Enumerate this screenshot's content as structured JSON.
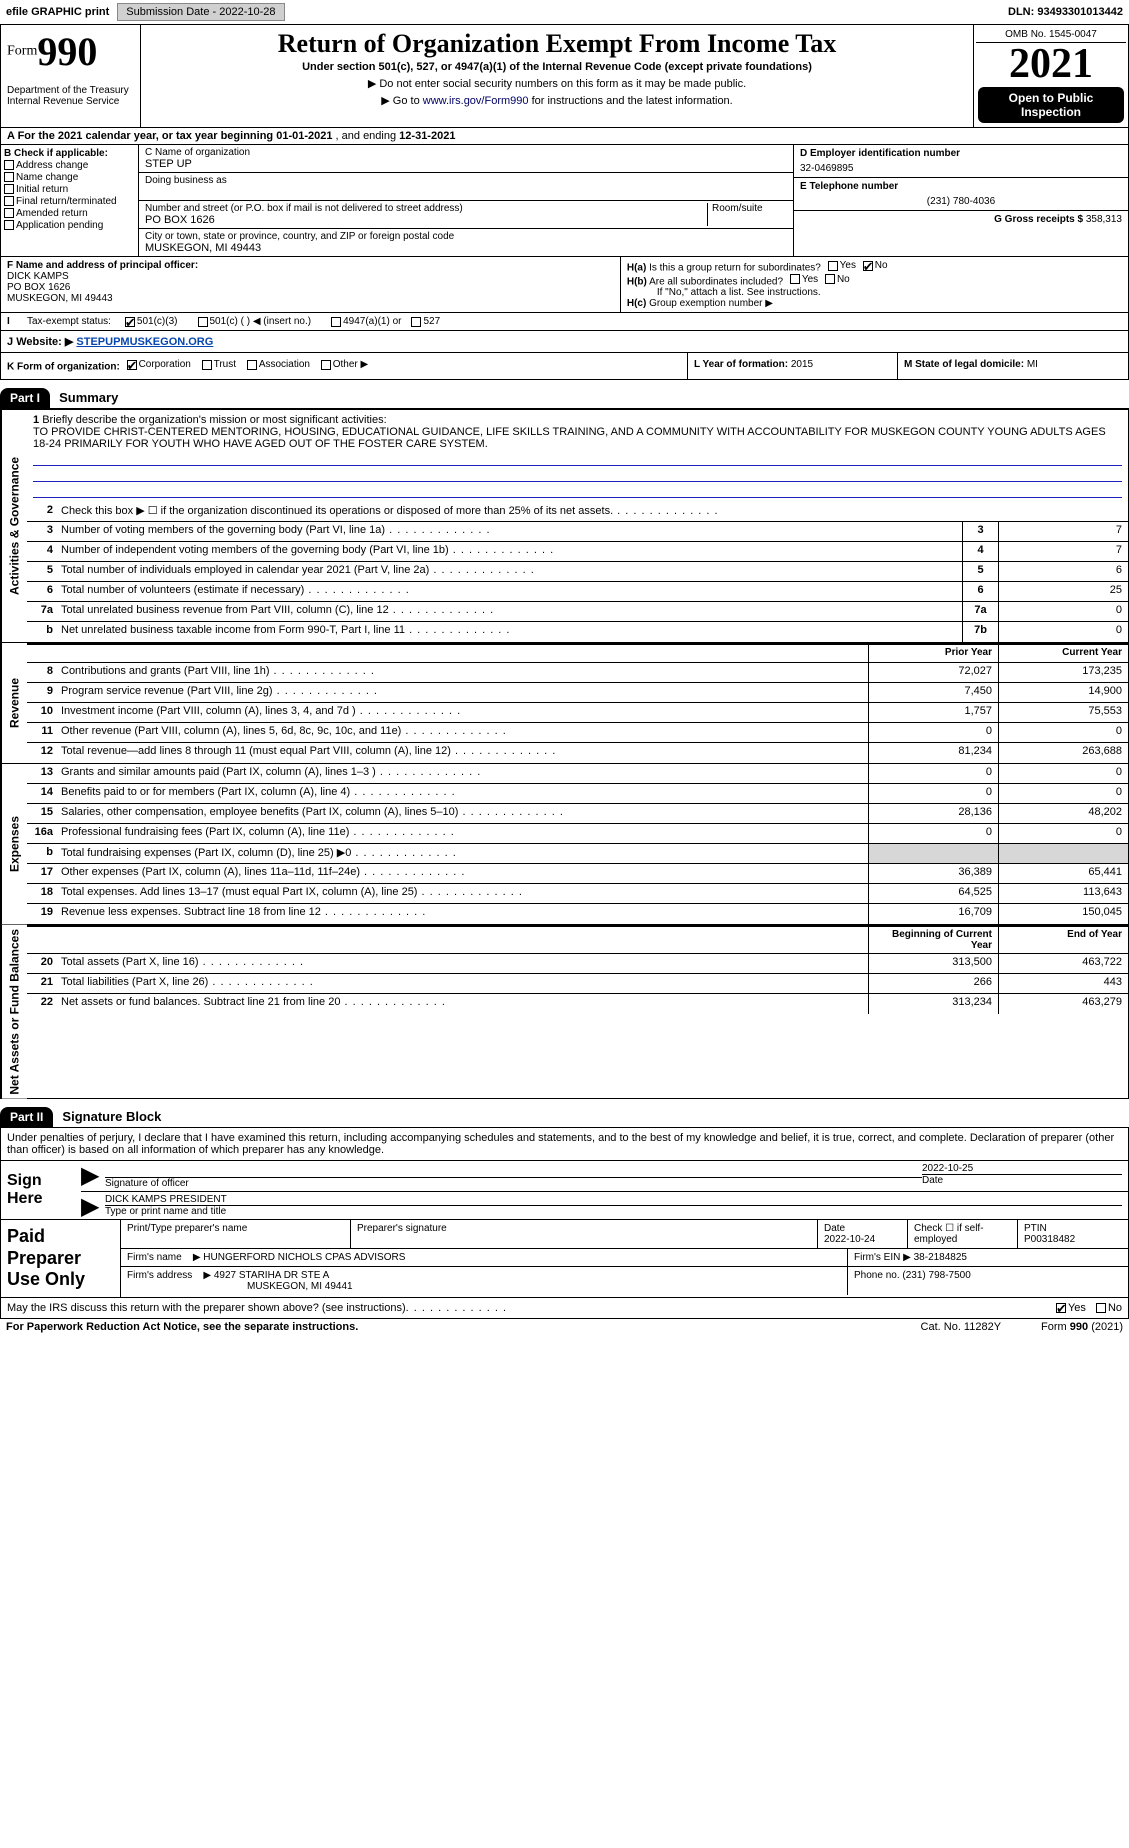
{
  "topbar": {
    "efile_label": "efile GRAPHIC print",
    "submission_btn": "Submission Date - 2022-10-28",
    "dln": "DLN: 93493301013442"
  },
  "header": {
    "form_label": "Form",
    "form_number": "990",
    "dept": "Department of the Treasury\nInternal Revenue Service",
    "title": "Return of Organization Exempt From Income Tax",
    "subtitle": "Under section 501(c), 527, or 4947(a)(1) of the Internal Revenue Code (except private foundations)",
    "ssn_note": "▶ Do not enter social security numbers on this form as it may be made public.",
    "goto": "▶ Go to www.irs.gov/Form990 for instructions and the latest information.",
    "goto_link": "www.irs.gov/Form990",
    "omb": "OMB No. 1545-0047",
    "year": "2021",
    "open_public": "Open to Public Inspection"
  },
  "period": {
    "text_a": "A For the 2021 calendar year, or tax year beginning ",
    "begin": "01-01-2021",
    "mid": " , and ending ",
    "end": "12-31-2021"
  },
  "boxB": {
    "header": "B Check if applicable:",
    "items": [
      "Address change",
      "Name change",
      "Initial return",
      "Final return/terminated",
      "Amended return",
      "Application pending"
    ]
  },
  "boxC": {
    "name_label": "C Name of organization",
    "name": "STEP UP",
    "dba_label": "Doing business as",
    "addr_label": "Number and street (or P.O. box if mail is not delivered to street address)",
    "room_label": "Room/suite",
    "addr": "PO BOX 1626",
    "city_label": "City or town, state or province, country, and ZIP or foreign postal code",
    "city": "MUSKEGON, MI  49443"
  },
  "boxDE": {
    "d_label": "D Employer identification number",
    "d_val": "32-0469895",
    "e_label": "E Telephone number",
    "e_val": "(231) 780-4036",
    "g_label": "G Gross receipts $",
    "g_val": "358,313"
  },
  "boxF": {
    "label": "F Name and address of principal officer:",
    "name": "DICK KAMPS",
    "addr1": "PO BOX 1626",
    "addr2": "MUSKEGON, MI  49443"
  },
  "boxH": {
    "ha_label": "H(a)",
    "ha_text": "Is this a group return for subordinates?",
    "hb_label": "H(b)",
    "hb_text": "Are all subordinates included?",
    "hb_note": "If \"No,\" attach a list. See instructions.",
    "hc_label": "H(c)",
    "hc_text": "Group exemption number ▶",
    "yes": "Yes",
    "no": "No"
  },
  "boxI": {
    "label": "I",
    "text": "Tax-exempt status:",
    "opts": [
      "501(c)(3)",
      "501(c) (  ) ◀ (insert no.)",
      "4947(a)(1) or",
      "527"
    ]
  },
  "boxJ": {
    "label": "J",
    "text": "Website: ▶",
    "url": "STEPUPMUSKEGON.ORG"
  },
  "boxK": {
    "label": "K Form of organization:",
    "opts": [
      "Corporation",
      "Trust",
      "Association",
      "Other ▶"
    ],
    "l_label": "L Year of formation:",
    "l_val": "2015",
    "m_label": "M State of legal domicile:",
    "m_val": "MI"
  },
  "part1": {
    "header": "Part I",
    "title": "Summary",
    "line1_label": "1",
    "line1_text": "Briefly describe the organization's mission or most significant activities:",
    "mission": "TO PROVIDE CHRIST-CENTERED MENTORING, HOUSING, EDUCATIONAL GUIDANCE, LIFE SKILLS TRAINING, AND A COMMUNITY WITH ACCOUNTABILITY FOR MUSKEGON COUNTY YOUNG ADULTS AGES 18-24 PRIMARILY FOR YOUTH WHO HAVE AGED OUT OF THE FOSTER CARE SYSTEM."
  },
  "gov_rows": [
    {
      "n": "2",
      "d": "Check this box ▶ ☐ if the organization discontinued its operations or disposed of more than 25% of its net assets.",
      "box": "",
      "v": ""
    },
    {
      "n": "3",
      "d": "Number of voting members of the governing body (Part VI, line 1a)",
      "box": "3",
      "v": "7"
    },
    {
      "n": "4",
      "d": "Number of independent voting members of the governing body (Part VI, line 1b)",
      "box": "4",
      "v": "7"
    },
    {
      "n": "5",
      "d": "Total number of individuals employed in calendar year 2021 (Part V, line 2a)",
      "box": "5",
      "v": "6"
    },
    {
      "n": "6",
      "d": "Total number of volunteers (estimate if necessary)",
      "box": "6",
      "v": "25"
    },
    {
      "n": "7a",
      "d": "Total unrelated business revenue from Part VIII, column (C), line 12",
      "box": "7a",
      "v": "0"
    },
    {
      "n": "b",
      "d": "Net unrelated business taxable income from Form 990-T, Part I, line 11",
      "box": "7b",
      "v": "0"
    }
  ],
  "side_labels": {
    "gov": "Activities & Governance",
    "rev": "Revenue",
    "exp": "Expenses",
    "net": "Net Assets or Fund Balances"
  },
  "col_headers": {
    "prior": "Prior Year",
    "current": "Current Year",
    "beg": "Beginning of Current Year",
    "end": "End of Year"
  },
  "rev_rows": [
    {
      "n": "8",
      "d": "Contributions and grants (Part VIII, line 1h)",
      "p": "72,027",
      "c": "173,235"
    },
    {
      "n": "9",
      "d": "Program service revenue (Part VIII, line 2g)",
      "p": "7,450",
      "c": "14,900"
    },
    {
      "n": "10",
      "d": "Investment income (Part VIII, column (A), lines 3, 4, and 7d )",
      "p": "1,757",
      "c": "75,553"
    },
    {
      "n": "11",
      "d": "Other revenue (Part VIII, column (A), lines 5, 6d, 8c, 9c, 10c, and 11e)",
      "p": "0",
      "c": "0"
    },
    {
      "n": "12",
      "d": "Total revenue—add lines 8 through 11 (must equal Part VIII, column (A), line 12)",
      "p": "81,234",
      "c": "263,688"
    }
  ],
  "exp_rows": [
    {
      "n": "13",
      "d": "Grants and similar amounts paid (Part IX, column (A), lines 1–3 )",
      "p": "0",
      "c": "0"
    },
    {
      "n": "14",
      "d": "Benefits paid to or for members (Part IX, column (A), line 4)",
      "p": "0",
      "c": "0"
    },
    {
      "n": "15",
      "d": "Salaries, other compensation, employee benefits (Part IX, column (A), lines 5–10)",
      "p": "28,136",
      "c": "48,202"
    },
    {
      "n": "16a",
      "d": "Professional fundraising fees (Part IX, column (A), line 11e)",
      "p": "0",
      "c": "0"
    },
    {
      "n": "b",
      "d": "Total fundraising expenses (Part IX, column (D), line 25) ▶0",
      "p": "SHADE",
      "c": "SHADE"
    },
    {
      "n": "17",
      "d": "Other expenses (Part IX, column (A), lines 11a–11d, 11f–24e)",
      "p": "36,389",
      "c": "65,441"
    },
    {
      "n": "18",
      "d": "Total expenses. Add lines 13–17 (must equal Part IX, column (A), line 25)",
      "p": "64,525",
      "c": "113,643"
    },
    {
      "n": "19",
      "d": "Revenue less expenses. Subtract line 18 from line 12",
      "p": "16,709",
      "c": "150,045"
    }
  ],
  "net_rows": [
    {
      "n": "20",
      "d": "Total assets (Part X, line 16)",
      "p": "313,500",
      "c": "463,722"
    },
    {
      "n": "21",
      "d": "Total liabilities (Part X, line 26)",
      "p": "266",
      "c": "443"
    },
    {
      "n": "22",
      "d": "Net assets or fund balances. Subtract line 21 from line 20",
      "p": "313,234",
      "c": "463,279"
    }
  ],
  "part2": {
    "header": "Part II",
    "title": "Signature Block",
    "disclaimer": "Under penalties of perjury, I declare that I have examined this return, including accompanying schedules and statements, and to the best of my knowledge and belief, it is true, correct, and complete. Declaration of preparer (other than officer) is based on all information of which preparer has any knowledge."
  },
  "sign": {
    "label": "Sign Here",
    "sig_officer": "Signature of officer",
    "date": "Date",
    "date_val": "2022-10-25",
    "name_title": "Type or print name and title",
    "name_val": "DICK KAMPS  PRESIDENT"
  },
  "paid": {
    "label": "Paid Preparer Use Only",
    "h1": "Print/Type preparer's name",
    "h2": "Preparer's signature",
    "h3": "Date",
    "h3v": "2022-10-24",
    "h4": "Check ☐ if self-employed",
    "h5": "PTIN",
    "h5v": "P00318482",
    "firm_name_lbl": "Firm's name",
    "firm_name": "▶ HUNGERFORD NICHOLS CPAS ADVISORS",
    "firm_ein_lbl": "Firm's EIN ▶",
    "firm_ein": "38-2184825",
    "firm_addr_lbl": "Firm's address",
    "firm_addr": "▶ 4927 STARIHA DR STE A",
    "firm_city": "MUSKEGON, MI  49441",
    "phone_lbl": "Phone no.",
    "phone": "(231) 798-7500"
  },
  "footer": {
    "discuss": "May the IRS discuss this return with the preparer shown above? (see instructions)",
    "yes": "Yes",
    "no": "No",
    "pra": "For Paperwork Reduction Act Notice, see the separate instructions.",
    "cat": "Cat. No. 11282Y",
    "form": "Form 990 (2021)"
  },
  "colors": {
    "black": "#000000",
    "shade": "#d7d7d7",
    "link": "#0645ad",
    "blue_line": "#2020c0"
  }
}
